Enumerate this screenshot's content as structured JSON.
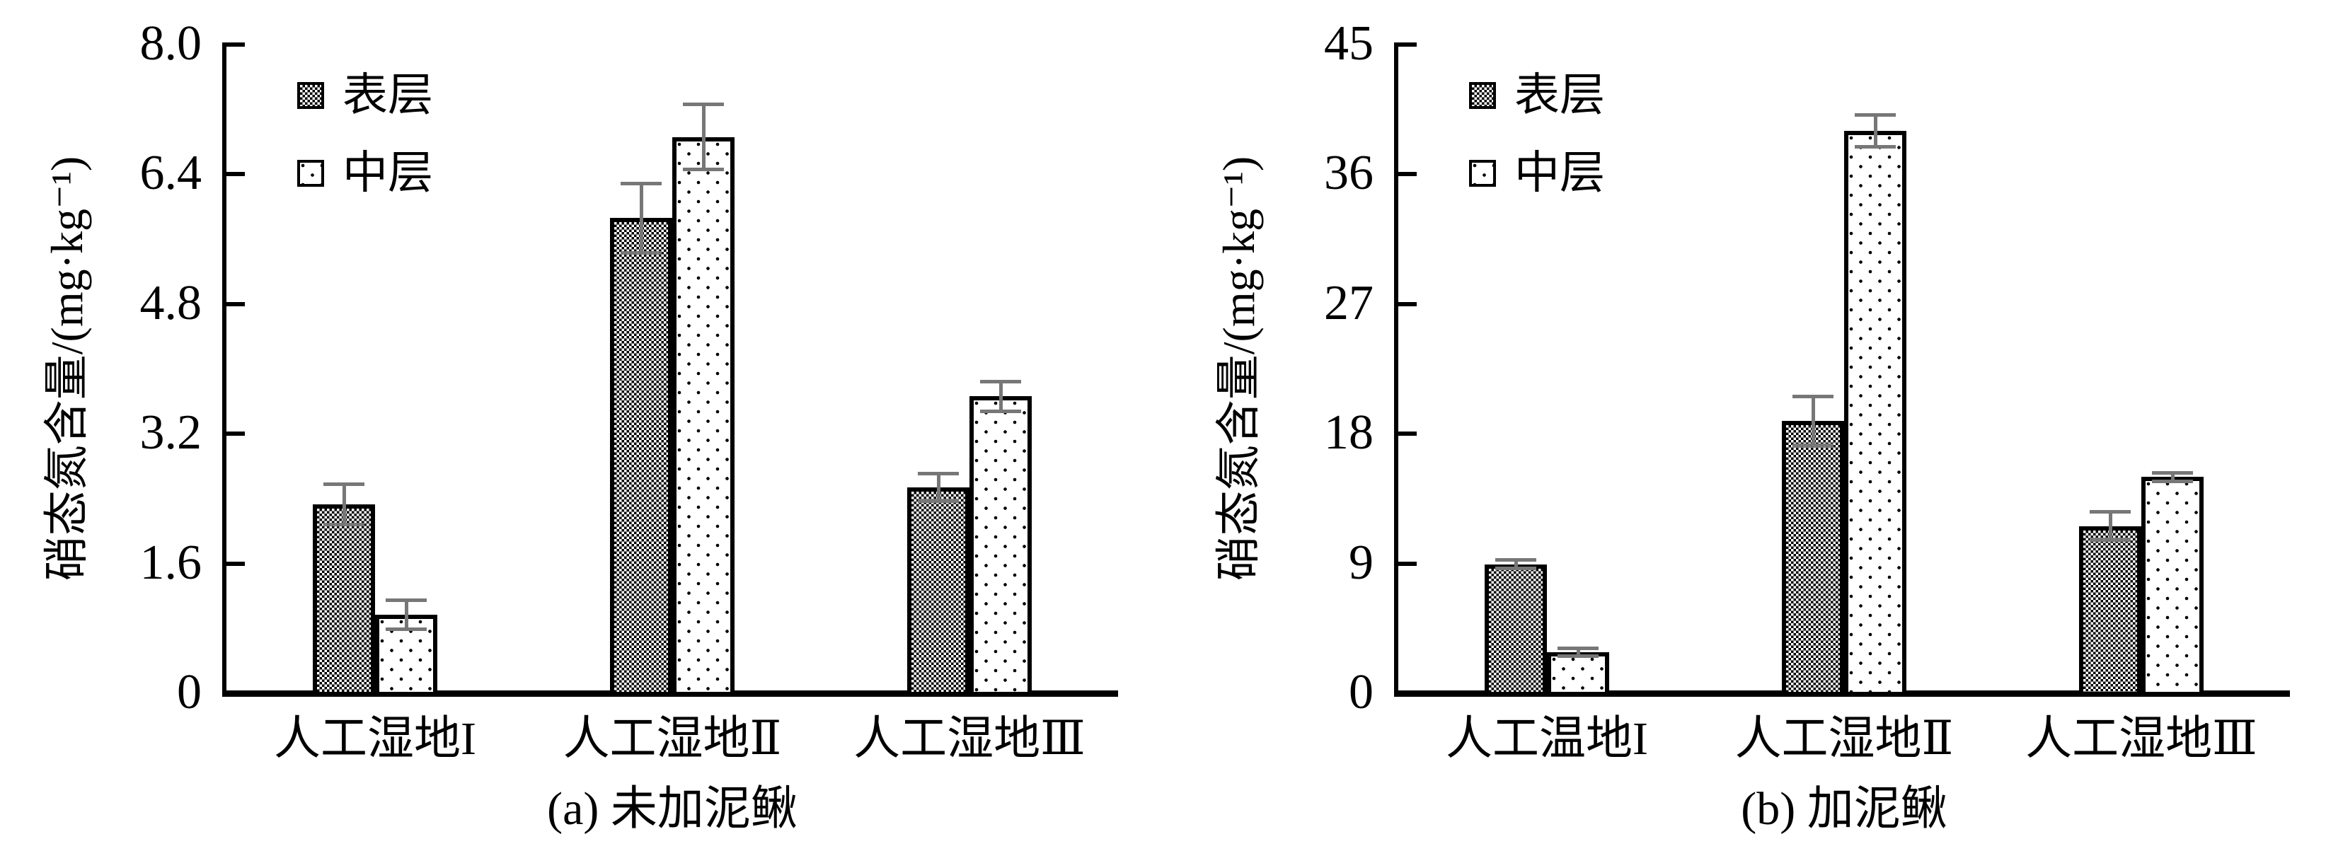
{
  "figure": {
    "ylabel": "硝态氮含量/(mg·kg⁻¹)",
    "legend": [
      "表层",
      "中层"
    ],
    "colors": {
      "ink": "#000000",
      "error_bar": "#777777",
      "background": "#ffffff"
    }
  },
  "chart_data": [
    {
      "type": "bar",
      "title": "(a) 未加泥鳅",
      "ylabel": "硝态氮含量/(mg·kg⁻¹)",
      "categories": [
        "人工湿地I",
        "人工湿地Ⅱ",
        "人工湿地Ⅲ"
      ],
      "yticks": [
        0,
        1.6,
        3.2,
        4.8,
        6.4,
        8.0
      ],
      "ytick_labels": [
        "0",
        "1.6",
        "3.2",
        "4.8",
        "6.4",
        "8.0"
      ],
      "ylim": [
        0,
        8.0
      ],
      "grid": false,
      "legend_position": "top-left",
      "series": [
        {
          "name": "表层",
          "pattern": "checker",
          "values": [
            2.33,
            5.86,
            2.54
          ],
          "errors": [
            0.25,
            0.43,
            0.17
          ]
        },
        {
          "name": "中层",
          "pattern": "dots",
          "values": [
            0.97,
            6.86,
            3.66
          ],
          "errors": [
            0.18,
            0.4,
            0.18
          ]
        }
      ]
    },
    {
      "type": "bar",
      "title": "(b) 加泥鳅",
      "ylabel": "硝态氮含量/(mg·kg⁻¹)",
      "categories": [
        "人工温地I",
        "人工湿地Ⅱ",
        "人工湿地Ⅲ"
      ],
      "yticks": [
        0,
        9,
        18,
        27,
        36,
        45
      ],
      "ytick_labels": [
        "0",
        "9",
        "18",
        "27",
        "36",
        "45"
      ],
      "ylim": [
        0,
        45
      ],
      "grid": false,
      "legend_position": "top-left",
      "series": [
        {
          "name": "表层",
          "pattern": "checker",
          "values": [
            8.95,
            18.9,
            11.6
          ],
          "errors": [
            0.3,
            1.7,
            1.0
          ]
        },
        {
          "name": "中层",
          "pattern": "dots",
          "values": [
            2.85,
            39.0,
            15.0
          ],
          "errors": [
            0.25,
            1.1,
            0.3
          ]
        }
      ]
    }
  ]
}
